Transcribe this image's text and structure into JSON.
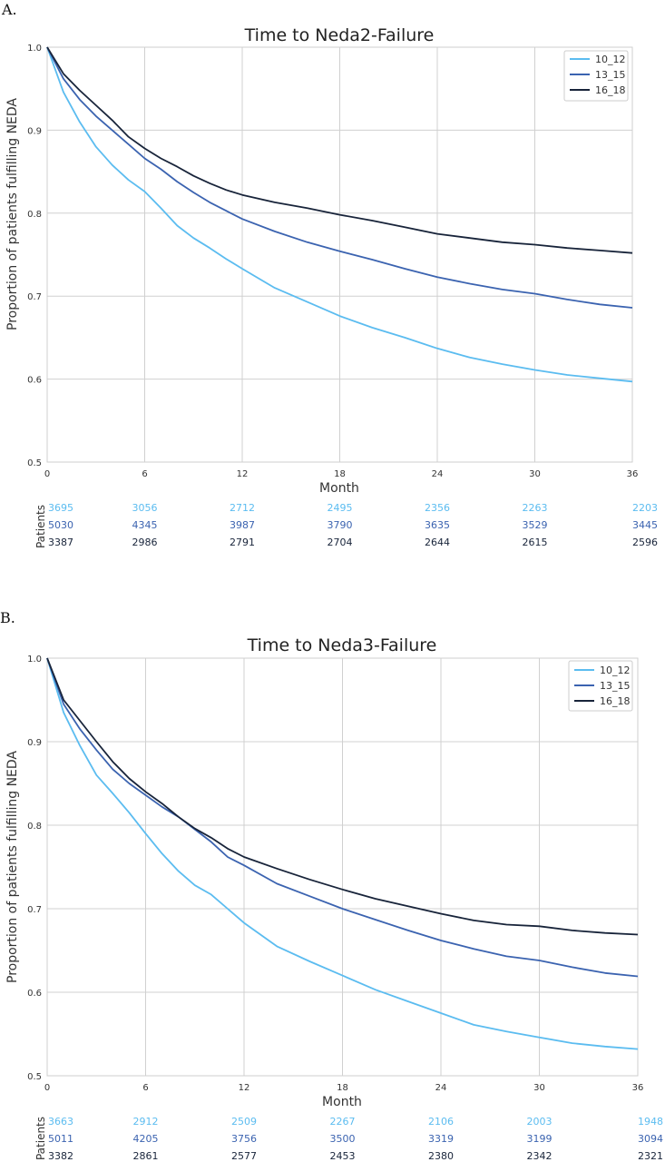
{
  "colors": {
    "10_12": "#5bbcf0",
    "13_15": "#3b63b0",
    "16_18": "#18243a"
  },
  "chart_data": [
    {
      "type": "line",
      "panel_label": "A.",
      "title": "Time to Neda2-Failure",
      "xlabel": "Month",
      "ylabel": "Proportion of patients fulfilling NEDA",
      "xlim": [
        0,
        36
      ],
      "ylim": [
        0.5,
        1.0
      ],
      "xticks": [
        0,
        6,
        12,
        18,
        24,
        30,
        36
      ],
      "yticks": [
        0.5,
        0.6,
        0.7,
        0.8,
        0.9,
        1.0
      ],
      "ytick_labels": [
        "0.5",
        "0.6",
        "0.7",
        "0.8",
        "0.9",
        "1.0"
      ],
      "grid": true,
      "legend_position": "top-right",
      "series": [
        {
          "name": "10_12",
          "x": [
            0,
            1,
            2,
            3,
            4,
            5,
            6,
            7,
            8,
            9,
            10,
            11,
            12,
            14,
            16,
            18,
            20,
            22,
            24,
            26,
            28,
            30,
            32,
            34,
            36
          ],
          "y": [
            1.0,
            0.946,
            0.91,
            0.88,
            0.858,
            0.84,
            0.826,
            0.806,
            0.785,
            0.77,
            0.758,
            0.745,
            0.733,
            0.71,
            0.693,
            0.676,
            0.662,
            0.65,
            0.637,
            0.626,
            0.618,
            0.611,
            0.605,
            0.601,
            0.597
          ]
        },
        {
          "name": "13_15",
          "x": [
            0,
            1,
            2,
            3,
            4,
            5,
            6,
            7,
            8,
            9,
            10,
            11,
            12,
            14,
            16,
            18,
            20,
            22,
            24,
            26,
            28,
            30,
            32,
            34,
            36
          ],
          "y": [
            1.0,
            0.962,
            0.937,
            0.917,
            0.9,
            0.883,
            0.866,
            0.853,
            0.838,
            0.825,
            0.813,
            0.803,
            0.793,
            0.778,
            0.765,
            0.754,
            0.744,
            0.733,
            0.723,
            0.715,
            0.708,
            0.703,
            0.696,
            0.69,
            0.686
          ]
        },
        {
          "name": "16_18",
          "x": [
            0,
            1,
            2,
            3,
            4,
            5,
            6,
            7,
            8,
            9,
            10,
            11,
            12,
            14,
            16,
            18,
            20,
            22,
            24,
            26,
            28,
            30,
            32,
            34,
            36
          ],
          "y": [
            1.0,
            0.968,
            0.948,
            0.93,
            0.912,
            0.892,
            0.878,
            0.866,
            0.856,
            0.845,
            0.836,
            0.828,
            0.822,
            0.813,
            0.806,
            0.798,
            0.791,
            0.783,
            0.775,
            0.77,
            0.765,
            0.762,
            0.758,
            0.755,
            0.752
          ]
        }
      ],
      "risk_table": {
        "label": "Patients",
        "rows": [
          {
            "name": "10_12",
            "values": [
              "3695",
              "3056",
              "2712",
              "2495",
              "2356",
              "2263",
              "2203"
            ]
          },
          {
            "name": "13_15",
            "values": [
              "5030",
              "4345",
              "3987",
              "3790",
              "3635",
              "3529",
              "3445"
            ]
          },
          {
            "name": "16_18",
            "values": [
              "3387",
              "2986",
              "2791",
              "2704",
              "2644",
              "2615",
              "2596"
            ]
          }
        ]
      }
    },
    {
      "type": "line",
      "panel_label": "B.",
      "title": "Time to Neda3-Failure",
      "xlabel": "Month",
      "ylabel": "Proportion of patients fulfilling NEDA",
      "xlim": [
        0,
        36
      ],
      "ylim": [
        0.5,
        1.0
      ],
      "xticks": [
        0,
        6,
        12,
        18,
        24,
        30,
        36
      ],
      "yticks": [
        0.5,
        0.6,
        0.7,
        0.8,
        0.9,
        1.0
      ],
      "ytick_labels": [
        "0.5",
        "0.6",
        "0.7",
        "0.8",
        "0.9",
        "1.0"
      ],
      "grid": true,
      "legend_position": "top-right",
      "series": [
        {
          "name": "10_12",
          "x": [
            0,
            1,
            2,
            3,
            4,
            5,
            6,
            7,
            8,
            9,
            10,
            11,
            12,
            14,
            16,
            18,
            20,
            22,
            24,
            26,
            28,
            30,
            32,
            34,
            36
          ],
          "y": [
            1.0,
            0.935,
            0.895,
            0.86,
            0.838,
            0.815,
            0.79,
            0.766,
            0.745,
            0.728,
            0.717,
            0.7,
            0.683,
            0.655,
            0.637,
            0.62,
            0.603,
            0.589,
            0.575,
            0.561,
            0.553,
            0.546,
            0.539,
            0.535,
            0.532
          ]
        },
        {
          "name": "13_15",
          "x": [
            0,
            1,
            2,
            3,
            4,
            5,
            6,
            7,
            8,
            9,
            10,
            11,
            12,
            14,
            16,
            18,
            20,
            22,
            24,
            26,
            28,
            30,
            32,
            34,
            36
          ],
          "y": [
            1.0,
            0.945,
            0.915,
            0.89,
            0.867,
            0.85,
            0.836,
            0.822,
            0.81,
            0.795,
            0.78,
            0.762,
            0.752,
            0.73,
            0.715,
            0.7,
            0.687,
            0.674,
            0.662,
            0.652,
            0.643,
            0.638,
            0.63,
            0.623,
            0.619
          ]
        },
        {
          "name": "16_18",
          "x": [
            0,
            1,
            2,
            3,
            4,
            5,
            6,
            7,
            8,
            9,
            10,
            11,
            12,
            14,
            16,
            18,
            20,
            22,
            24,
            26,
            28,
            30,
            32,
            34,
            36
          ],
          "y": [
            1.0,
            0.95,
            0.925,
            0.9,
            0.876,
            0.856,
            0.84,
            0.826,
            0.81,
            0.796,
            0.785,
            0.772,
            0.762,
            0.748,
            0.735,
            0.723,
            0.712,
            0.703,
            0.694,
            0.686,
            0.681,
            0.679,
            0.674,
            0.671,
            0.669
          ]
        }
      ],
      "risk_table": {
        "label": "Patients",
        "rows": [
          {
            "name": "10_12",
            "values": [
              "3663",
              "2912",
              "2509",
              "2267",
              "2106",
              "2003",
              "1948"
            ]
          },
          {
            "name": "13_15",
            "values": [
              "5011",
              "4205",
              "3756",
              "3500",
              "3319",
              "3199",
              "3094"
            ]
          },
          {
            "name": "16_18",
            "values": [
              "3382",
              "2861",
              "2577",
              "2453",
              "2380",
              "2342",
              "2321"
            ]
          }
        ]
      }
    }
  ]
}
